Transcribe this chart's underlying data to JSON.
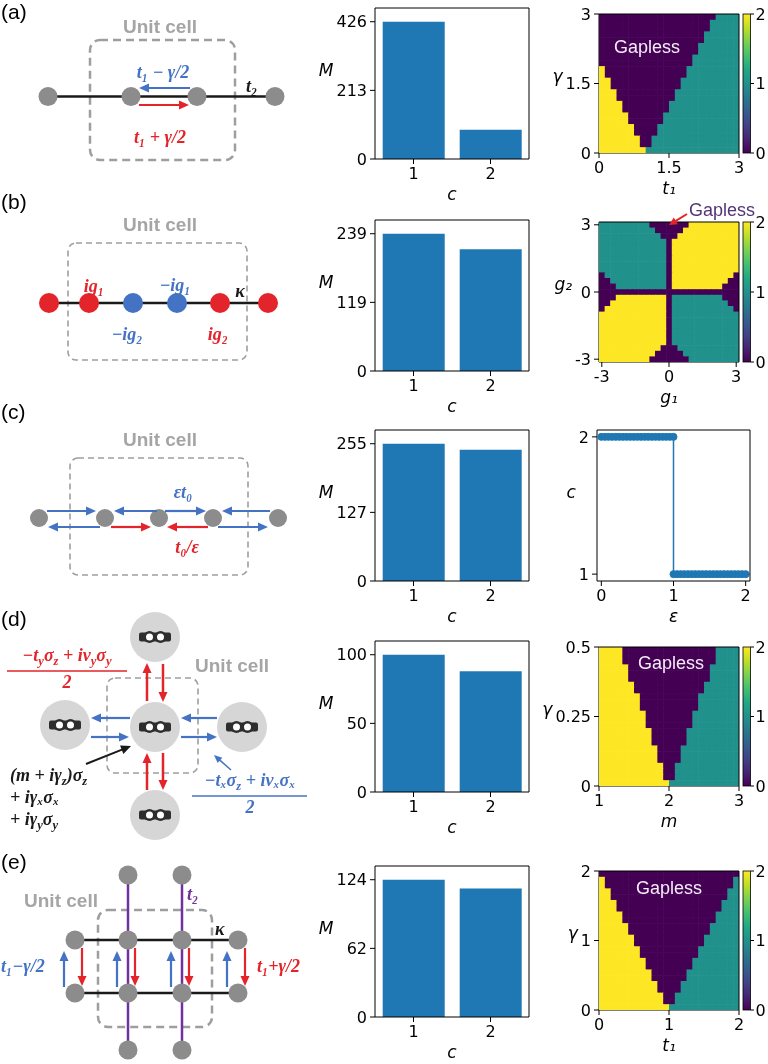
{
  "chart_data": [
    {
      "type": "other",
      "title": "(a)",
      "annotations": [
        "Unit cell",
        "t₁ − γ/2",
        "t₁ + γ/2",
        "t₂"
      ]
    },
    {
      "type": "bar",
      "categories": [
        "1",
        "2"
      ],
      "values": [
        426,
        91
      ],
      "color": "#1f77b4",
      "xlabel": "c",
      "ylabel": "M",
      "ylim": [
        0,
        468.6
      ],
      "yticks": [
        0,
        213,
        426
      ]
    },
    {
      "type": "heatmap",
      "xlabel": "t₁",
      "ylabel": "γ",
      "xlim": [
        0,
        3
      ],
      "ylim": [
        0,
        3
      ],
      "xticks": [
        0,
        1.5,
        3
      ],
      "yticks": [
        0,
        1.5,
        3
      ],
      "clim": [
        0,
        2
      ],
      "cticks": [
        0,
        1,
        2
      ],
      "annotations": [
        "Gapless"
      ],
      "cells": [
        [
          0,
          0,
          0,
          0,
          0,
          0,
          0,
          0,
          0,
          0,
          0,
          0,
          0,
          0,
          0,
          0,
          0,
          0,
          0,
          0,
          1,
          1,
          1,
          1
        ],
        [
          0,
          0,
          0,
          0,
          0,
          0,
          0,
          0,
          0,
          0,
          0,
          0,
          0,
          0,
          0,
          0,
          0,
          0,
          0,
          1,
          1,
          1,
          1,
          1
        ],
        [
          0,
          0,
          0,
          0,
          0,
          0,
          0,
          0,
          0,
          0,
          0,
          0,
          0,
          0,
          0,
          0,
          0,
          0,
          0,
          1,
          1,
          1,
          1,
          1
        ],
        [
          0,
          0,
          0,
          0,
          0,
          0,
          0,
          0,
          0,
          0,
          0,
          0,
          0,
          0,
          0,
          0,
          0,
          0,
          1,
          1,
          1,
          1,
          1,
          1
        ],
        [
          0,
          0,
          0,
          0,
          0,
          0,
          0,
          0,
          0,
          0,
          0,
          0,
          0,
          0,
          0,
          0,
          0,
          0,
          1,
          1,
          1,
          1,
          1,
          1
        ],
        [
          0,
          0,
          0,
          0,
          0,
          0,
          0,
          0,
          0,
          0,
          0,
          0,
          0,
          0,
          0,
          0,
          0,
          1,
          1,
          1,
          1,
          1,
          1,
          1
        ],
        [
          0,
          0,
          0,
          0,
          0,
          0,
          0,
          0,
          0,
          0,
          0,
          0,
          0,
          0,
          0,
          0,
          0,
          1,
          1,
          1,
          1,
          1,
          1,
          1
        ],
        [
          0,
          0,
          0,
          0,
          0,
          0,
          0,
          0,
          0,
          0,
          0,
          0,
          0,
          0,
          0,
          0,
          1,
          1,
          1,
          1,
          1,
          1,
          1,
          1
        ],
        [
          0,
          0,
          0,
          0,
          0,
          0,
          0,
          0,
          0,
          0,
          0,
          0,
          0,
          0,
          0,
          0,
          1,
          1,
          1,
          1,
          1,
          1,
          1,
          1
        ],
        [
          2,
          0,
          0,
          0,
          0,
          0,
          0,
          0,
          0,
          0,
          0,
          0,
          0,
          0,
          0,
          1,
          1,
          1,
          1,
          1,
          1,
          1,
          1,
          1
        ],
        [
          2,
          0,
          0,
          0,
          0,
          0,
          0,
          0,
          0,
          0,
          0,
          0,
          0,
          0,
          0,
          1,
          1,
          1,
          1,
          1,
          1,
          1,
          1,
          1
        ],
        [
          2,
          2,
          0,
          0,
          0,
          0,
          0,
          0,
          0,
          0,
          0,
          0,
          0,
          0,
          1,
          1,
          1,
          1,
          1,
          1,
          1,
          1,
          1,
          1
        ],
        [
          2,
          2,
          0,
          0,
          0,
          0,
          0,
          0,
          0,
          0,
          0,
          0,
          0,
          0,
          1,
          1,
          1,
          1,
          1,
          1,
          1,
          1,
          1,
          1
        ],
        [
          2,
          2,
          2,
          0,
          0,
          0,
          0,
          0,
          0,
          0,
          0,
          0,
          0,
          1,
          1,
          1,
          1,
          1,
          1,
          1,
          1,
          1,
          1,
          1
        ],
        [
          2,
          2,
          2,
          0,
          0,
          0,
          0,
          0,
          0,
          0,
          0,
          0,
          0,
          1,
          1,
          1,
          1,
          1,
          1,
          1,
          1,
          1,
          1,
          1
        ],
        [
          2,
          2,
          2,
          2,
          0,
          0,
          0,
          0,
          0,
          0,
          0,
          0,
          1,
          1,
          1,
          1,
          1,
          1,
          1,
          1,
          1,
          1,
          1,
          1
        ],
        [
          2,
          2,
          2,
          2,
          0,
          0,
          0,
          0,
          0,
          0,
          0,
          0,
          1,
          1,
          1,
          1,
          1,
          1,
          1,
          1,
          1,
          1,
          1,
          1
        ],
        [
          2,
          2,
          2,
          2,
          2,
          0,
          0,
          0,
          0,
          0,
          0,
          1,
          1,
          1,
          1,
          1,
          1,
          1,
          1,
          1,
          1,
          1,
          1,
          1
        ],
        [
          2,
          2,
          2,
          2,
          2,
          0,
          0,
          0,
          0,
          0,
          0,
          1,
          1,
          1,
          1,
          1,
          1,
          1,
          1,
          1,
          1,
          1,
          1,
          1
        ],
        [
          2,
          2,
          2,
          2,
          2,
          2,
          0,
          0,
          0,
          0,
          1,
          1,
          1,
          1,
          1,
          1,
          1,
          1,
          1,
          1,
          1,
          1,
          1,
          1
        ],
        [
          2,
          2,
          2,
          2,
          2,
          2,
          0,
          0,
          0,
          0,
          1,
          1,
          1,
          1,
          1,
          1,
          1,
          1,
          1,
          1,
          1,
          1,
          1,
          1
        ],
        [
          2,
          2,
          2,
          2,
          2,
          2,
          2,
          0,
          0,
          1,
          1,
          1,
          1,
          1,
          1,
          1,
          1,
          1,
          1,
          1,
          1,
          1,
          1,
          1
        ],
        [
          2,
          2,
          2,
          2,
          2,
          2,
          2,
          0,
          0,
          1,
          1,
          1,
          1,
          1,
          1,
          1,
          1,
          1,
          1,
          1,
          1,
          1,
          1,
          1
        ],
        [
          2,
          2,
          2,
          2,
          2,
          2,
          2,
          2,
          1,
          1,
          1,
          1,
          1,
          1,
          1,
          1,
          1,
          1,
          1,
          1,
          1,
          1,
          1,
          1
        ]
      ]
    },
    {
      "type": "other",
      "title": "(b)",
      "annotations": [
        "Unit cell",
        "ig₁",
        "−ig₁",
        "κ",
        "−ig₂",
        "ig₂"
      ]
    },
    {
      "type": "bar",
      "categories": [
        "1",
        "2"
      ],
      "values": [
        239,
        212
      ],
      "color": "#1f77b4",
      "xlabel": "c",
      "ylabel": "M",
      "ylim": [
        0,
        262.9
      ],
      "yticks": [
        0,
        {
          "value": 119.5,
          "label": "119"
        },
        239
      ]
    },
    {
      "type": "heatmap",
      "xlabel": "g₁",
      "ylabel": "g₂",
      "xlim": [
        -3.125,
        3.125
      ],
      "ylim": [
        -3.125,
        3.125
      ],
      "xticks": [
        -3,
        0,
        3
      ],
      "yticks": [
        -3,
        0,
        3
      ],
      "clim": [
        0,
        2
      ],
      "cticks": [
        0,
        1,
        2
      ],
      "annotations": [
        "Gapless"
      ],
      "cells": [
        [
          1,
          1,
          1,
          1,
          1,
          1,
          1,
          1,
          1,
          0,
          0,
          0,
          0,
          0,
          0,
          0,
          2,
          2,
          2,
          2,
          2,
          2,
          2,
          2,
          2
        ],
        [
          1,
          1,
          1,
          1,
          1,
          1,
          1,
          1,
          1,
          1,
          0,
          0,
          0,
          0,
          0,
          2,
          2,
          2,
          2,
          2,
          2,
          2,
          2,
          2,
          2
        ],
        [
          1,
          1,
          1,
          1,
          1,
          1,
          1,
          1,
          1,
          1,
          1,
          0,
          0,
          0,
          2,
          2,
          2,
          2,
          2,
          2,
          2,
          2,
          2,
          2,
          2
        ],
        [
          1,
          1,
          1,
          1,
          1,
          1,
          1,
          1,
          1,
          1,
          1,
          1,
          0,
          2,
          2,
          2,
          2,
          2,
          2,
          2,
          2,
          2,
          2,
          2,
          2
        ],
        [
          1,
          1,
          1,
          1,
          1,
          1,
          1,
          1,
          1,
          1,
          1,
          1,
          0,
          2,
          2,
          2,
          2,
          2,
          2,
          2,
          2,
          2,
          2,
          2,
          2
        ],
        [
          1,
          1,
          1,
          1,
          1,
          1,
          1,
          1,
          1,
          1,
          1,
          1,
          0,
          2,
          2,
          2,
          2,
          2,
          2,
          2,
          2,
          2,
          2,
          2,
          2
        ],
        [
          1,
          1,
          1,
          1,
          1,
          1,
          1,
          1,
          1,
          1,
          1,
          1,
          0,
          2,
          2,
          2,
          2,
          2,
          2,
          2,
          2,
          2,
          2,
          2,
          2
        ],
        [
          1,
          1,
          1,
          1,
          1,
          1,
          1,
          1,
          1,
          1,
          1,
          1,
          0,
          2,
          2,
          2,
          2,
          2,
          2,
          2,
          2,
          2,
          2,
          2,
          2
        ],
        [
          1,
          1,
          1,
          1,
          1,
          1,
          1,
          1,
          1,
          1,
          1,
          1,
          0,
          2,
          2,
          2,
          2,
          2,
          2,
          2,
          2,
          2,
          2,
          2,
          2
        ],
        [
          0,
          1,
          1,
          1,
          1,
          1,
          1,
          1,
          1,
          1,
          1,
          1,
          0,
          2,
          2,
          2,
          2,
          2,
          2,
          2,
          2,
          2,
          2,
          2,
          0
        ],
        [
          0,
          0,
          1,
          1,
          1,
          1,
          1,
          1,
          1,
          1,
          1,
          1,
          0,
          2,
          2,
          2,
          2,
          2,
          2,
          2,
          2,
          2,
          2,
          0,
          0
        ],
        [
          0,
          0,
          0,
          1,
          1,
          1,
          1,
          1,
          1,
          1,
          1,
          1,
          0,
          2,
          2,
          2,
          2,
          2,
          2,
          2,
          2,
          2,
          0,
          0,
          0
        ],
        [
          0,
          0,
          0,
          0,
          0,
          0,
          0,
          0,
          0,
          0,
          0,
          0,
          0,
          0,
          0,
          0,
          0,
          0,
          0,
          0,
          0,
          0,
          0,
          0,
          0
        ],
        [
          0,
          0,
          0,
          2,
          2,
          2,
          2,
          2,
          2,
          2,
          2,
          2,
          0,
          1,
          1,
          1,
          1,
          1,
          1,
          1,
          1,
          1,
          0,
          0,
          0
        ],
        [
          0,
          0,
          2,
          2,
          2,
          2,
          2,
          2,
          2,
          2,
          2,
          2,
          0,
          1,
          1,
          1,
          1,
          1,
          1,
          1,
          1,
          1,
          1,
          0,
          0
        ],
        [
          0,
          2,
          2,
          2,
          2,
          2,
          2,
          2,
          2,
          2,
          2,
          2,
          0,
          1,
          1,
          1,
          1,
          1,
          1,
          1,
          1,
          1,
          1,
          1,
          0
        ],
        [
          2,
          2,
          2,
          2,
          2,
          2,
          2,
          2,
          2,
          2,
          2,
          2,
          0,
          1,
          1,
          1,
          1,
          1,
          1,
          1,
          1,
          1,
          1,
          1,
          1
        ],
        [
          2,
          2,
          2,
          2,
          2,
          2,
          2,
          2,
          2,
          2,
          2,
          2,
          0,
          1,
          1,
          1,
          1,
          1,
          1,
          1,
          1,
          1,
          1,
          1,
          1
        ],
        [
          2,
          2,
          2,
          2,
          2,
          2,
          2,
          2,
          2,
          2,
          2,
          2,
          0,
          1,
          1,
          1,
          1,
          1,
          1,
          1,
          1,
          1,
          1,
          1,
          1
        ],
        [
          2,
          2,
          2,
          2,
          2,
          2,
          2,
          2,
          2,
          2,
          2,
          2,
          0,
          1,
          1,
          1,
          1,
          1,
          1,
          1,
          1,
          1,
          1,
          1,
          1
        ],
        [
          2,
          2,
          2,
          2,
          2,
          2,
          2,
          2,
          2,
          2,
          2,
          2,
          0,
          1,
          1,
          1,
          1,
          1,
          1,
          1,
          1,
          1,
          1,
          1,
          1
        ],
        [
          2,
          2,
          2,
          2,
          2,
          2,
          2,
          2,
          2,
          2,
          2,
          2,
          0,
          1,
          1,
          1,
          1,
          1,
          1,
          1,
          1,
          1,
          1,
          1,
          1
        ],
        [
          2,
          2,
          2,
          2,
          2,
          2,
          2,
          2,
          2,
          2,
          2,
          0,
          0,
          0,
          1,
          1,
          1,
          1,
          1,
          1,
          1,
          1,
          1,
          1,
          1
        ],
        [
          2,
          2,
          2,
          2,
          2,
          2,
          2,
          2,
          2,
          2,
          0,
          0,
          0,
          0,
          0,
          1,
          1,
          1,
          1,
          1,
          1,
          1,
          1,
          1,
          1
        ],
        [
          2,
          2,
          2,
          2,
          2,
          2,
          2,
          2,
          2,
          0,
          0,
          0,
          0,
          0,
          0,
          0,
          1,
          1,
          1,
          1,
          1,
          1,
          1,
          1,
          1
        ]
      ]
    },
    {
      "type": "other",
      "title": "(c)",
      "annotations": [
        "Unit cell",
        "εt₀",
        "t₀/ε"
      ]
    },
    {
      "type": "bar",
      "categories": [
        "1",
        "2"
      ],
      "values": [
        255,
        244
      ],
      "color": "#1f77b4",
      "xlabel": "c",
      "ylabel": "M",
      "ylim": [
        0,
        280.5
      ],
      "yticks": [
        0,
        {
          "value": 127.5,
          "label": "127"
        },
        255
      ]
    },
    {
      "type": "line",
      "xlabel": "ε",
      "ylabel": "c",
      "color": "#1f77b4",
      "marker": "circle",
      "xlim": [
        -0.06,
        2.06
      ],
      "ylim": [
        0.95,
        2.05
      ],
      "xticks": [
        0,
        1,
        2
      ],
      "yticks": [
        1,
        2
      ],
      "x": [
        0,
        0.05,
        0.1,
        0.15,
        0.2,
        0.25,
        0.3,
        0.35,
        0.4,
        0.45,
        0.5,
        0.55,
        0.6,
        0.65,
        0.7,
        0.75,
        0.8,
        0.85,
        0.9,
        0.95,
        1,
        1,
        1.05,
        1.1,
        1.15,
        1.2,
        1.25,
        1.3,
        1.35,
        1.4,
        1.45,
        1.5,
        1.55,
        1.6,
        1.65,
        1.7,
        1.75,
        1.8,
        1.85,
        1.9,
        1.95,
        2
      ],
      "values": [
        2,
        2,
        2,
        2,
        2,
        2,
        2,
        2,
        2,
        2,
        2,
        2,
        2,
        2,
        2,
        2,
        2,
        2,
        2,
        2,
        2,
        1,
        1,
        1,
        1,
        1,
        1,
        1,
        1,
        1,
        1,
        1,
        1,
        1,
        1,
        1,
        1,
        1,
        1,
        1,
        1,
        1
      ]
    },
    {
      "type": "other",
      "title": "(d)",
      "annotations": [
        "−t$_{y}$σ$_{z}$ + iv$_{y}$σ$_{y}$",
        "2",
        "Unit cell",
        "(m + iγ$_{z}$)σ$_{z}$",
        "+ iγₓσₓ",
        "+ iγ$_{y}$σ$_{y}$",
        "−tₓσ$_{z}$ + ivₓσₓ",
        "2"
      ]
    },
    {
      "type": "bar",
      "categories": [
        "1",
        "2"
      ],
      "values": [
        100,
        88
      ],
      "color": "#1f77b4",
      "xlabel": "c",
      "ylabel": "M",
      "ylim": [
        0,
        110
      ],
      "yticks": [
        0,
        50,
        100
      ]
    },
    {
      "type": "heatmap",
      "xlabel": "m",
      "ylabel": "γ",
      "xlim": [
        1,
        3
      ],
      "ylim": [
        0,
        0.5
      ],
      "xticks": [
        1,
        2,
        3
      ],
      "yticks": [
        0,
        0.25,
        0.5
      ],
      "clim": [
        0,
        2
      ],
      "cticks": [
        0,
        1,
        2
      ],
      "annotations": [
        "Gapless"
      ],
      "cells": [
        [
          2,
          2,
          2,
          2,
          0,
          0,
          0,
          0,
          0,
          0,
          0,
          0,
          0,
          0,
          0,
          0,
          0,
          0,
          0,
          0,
          1,
          1,
          1,
          1
        ],
        [
          2,
          2,
          2,
          2,
          0,
          0,
          0,
          0,
          0,
          0,
          0,
          0,
          0,
          0,
          0,
          0,
          0,
          0,
          0,
          0,
          1,
          1,
          1,
          1
        ],
        [
          2,
          2,
          2,
          2,
          0,
          0,
          0,
          0,
          0,
          0,
          0,
          0,
          0,
          0,
          0,
          0,
          0,
          0,
          0,
          0,
          1,
          1,
          1,
          1
        ],
        [
          2,
          2,
          2,
          2,
          2,
          0,
          0,
          0,
          0,
          0,
          0,
          0,
          0,
          0,
          0,
          0,
          0,
          0,
          0,
          1,
          1,
          1,
          1,
          1
        ],
        [
          2,
          2,
          2,
          2,
          2,
          0,
          0,
          0,
          0,
          0,
          0,
          0,
          0,
          0,
          0,
          0,
          0,
          0,
          0,
          1,
          1,
          1,
          1,
          1
        ],
        [
          2,
          2,
          2,
          2,
          2,
          0,
          0,
          0,
          0,
          0,
          0,
          0,
          0,
          0,
          0,
          0,
          0,
          0,
          0,
          1,
          1,
          1,
          1,
          1
        ],
        [
          2,
          2,
          2,
          2,
          2,
          2,
          0,
          0,
          0,
          0,
          0,
          0,
          0,
          0,
          0,
          0,
          0,
          0,
          1,
          1,
          1,
          1,
          1,
          1
        ],
        [
          2,
          2,
          2,
          2,
          2,
          2,
          0,
          0,
          0,
          0,
          0,
          0,
          0,
          0,
          0,
          0,
          0,
          0,
          1,
          1,
          1,
          1,
          1,
          1
        ],
        [
          2,
          2,
          2,
          2,
          2,
          2,
          2,
          0,
          0,
          0,
          0,
          0,
          0,
          0,
          0,
          0,
          0,
          1,
          1,
          1,
          1,
          1,
          1,
          1
        ],
        [
          2,
          2,
          2,
          2,
          2,
          2,
          2,
          0,
          0,
          0,
          0,
          0,
          0,
          0,
          0,
          0,
          0,
          1,
          1,
          1,
          1,
          1,
          1,
          1
        ],
        [
          2,
          2,
          2,
          2,
          2,
          2,
          2,
          0,
          0,
          0,
          0,
          0,
          0,
          0,
          0,
          0,
          0,
          1,
          1,
          1,
          1,
          1,
          1,
          1
        ],
        [
          2,
          2,
          2,
          2,
          2,
          2,
          2,
          2,
          0,
          0,
          0,
          0,
          0,
          0,
          0,
          0,
          1,
          1,
          1,
          1,
          1,
          1,
          1,
          1
        ],
        [
          2,
          2,
          2,
          2,
          2,
          2,
          2,
          2,
          0,
          0,
          0,
          0,
          0,
          0,
          0,
          0,
          1,
          1,
          1,
          1,
          1,
          1,
          1,
          1
        ],
        [
          2,
          2,
          2,
          2,
          2,
          2,
          2,
          2,
          0,
          0,
          0,
          0,
          0,
          0,
          0,
          0,
          1,
          1,
          1,
          1,
          1,
          1,
          1,
          1
        ],
        [
          2,
          2,
          2,
          2,
          2,
          2,
          2,
          2,
          2,
          0,
          0,
          0,
          0,
          0,
          0,
          1,
          1,
          1,
          1,
          1,
          1,
          1,
          1,
          1
        ],
        [
          2,
          2,
          2,
          2,
          2,
          2,
          2,
          2,
          2,
          0,
          0,
          0,
          0,
          0,
          0,
          1,
          1,
          1,
          1,
          1,
          1,
          1,
          1,
          1
        ],
        [
          2,
          2,
          2,
          2,
          2,
          2,
          2,
          2,
          2,
          0,
          0,
          0,
          0,
          0,
          0,
          1,
          1,
          1,
          1,
          1,
          1,
          1,
          1,
          1
        ],
        [
          2,
          2,
          2,
          2,
          2,
          2,
          2,
          2,
          2,
          2,
          0,
          0,
          0,
          0,
          1,
          1,
          1,
          1,
          1,
          1,
          1,
          1,
          1,
          1
        ],
        [
          2,
          2,
          2,
          2,
          2,
          2,
          2,
          2,
          2,
          2,
          0,
          0,
          0,
          0,
          1,
          1,
          1,
          1,
          1,
          1,
          1,
          1,
          1,
          1
        ],
        [
          2,
          2,
          2,
          2,
          2,
          2,
          2,
          2,
          2,
          2,
          0,
          0,
          0,
          0,
          1,
          1,
          1,
          1,
          1,
          1,
          1,
          1,
          1,
          1
        ],
        [
          2,
          2,
          2,
          2,
          2,
          2,
          2,
          2,
          2,
          2,
          2,
          0,
          0,
          1,
          1,
          1,
          1,
          1,
          1,
          1,
          1,
          1,
          1,
          1
        ],
        [
          2,
          2,
          2,
          2,
          2,
          2,
          2,
          2,
          2,
          2,
          2,
          0,
          0,
          1,
          1,
          1,
          1,
          1,
          1,
          1,
          1,
          1,
          1,
          1
        ],
        [
          2,
          2,
          2,
          2,
          2,
          2,
          2,
          2,
          2,
          2,
          2,
          0,
          0,
          1,
          1,
          1,
          1,
          1,
          1,
          1,
          1,
          1,
          1,
          1
        ],
        [
          2,
          2,
          2,
          2,
          2,
          2,
          2,
          2,
          2,
          2,
          2,
          2,
          1,
          1,
          1,
          1,
          1,
          1,
          1,
          1,
          1,
          1,
          1,
          1
        ]
      ]
    },
    {
      "type": "other",
      "title": "(e)",
      "annotations": [
        "Unit cell",
        "t₂",
        "κ",
        "t₁−γ/2",
        "t₁+γ/2"
      ]
    },
    {
      "type": "bar",
      "categories": [
        "1",
        "2"
      ],
      "values": [
        124,
        116
      ],
      "color": "#1f77b4",
      "xlabel": "c",
      "ylabel": "M",
      "ylim": [
        0,
        136.4
      ],
      "yticks": [
        0,
        62,
        124
      ]
    },
    {
      "type": "heatmap",
      "xlabel": "t₁",
      "ylabel": "γ",
      "xlim": [
        0,
        2
      ],
      "ylim": [
        0,
        2
      ],
      "xticks": [
        0,
        1,
        2
      ],
      "yticks": [
        0,
        1,
        2
      ],
      "clim": [
        0,
        2
      ],
      "cticks": [
        0,
        1,
        2
      ],
      "annotations": [
        "Gapless"
      ],
      "cells": [
        [
          0,
          0,
          0,
          0,
          0,
          0,
          0,
          0,
          0,
          0,
          0,
          0,
          0,
          0,
          0,
          0,
          0,
          0,
          0,
          0,
          0,
          0,
          0,
          0
        ],
        [
          2,
          0,
          0,
          0,
          0,
          0,
          0,
          0,
          0,
          0,
          0,
          0,
          0,
          0,
          0,
          0,
          0,
          0,
          0,
          0,
          0,
          0,
          0,
          1
        ],
        [
          2,
          0,
          0,
          0,
          0,
          0,
          0,
          0,
          0,
          0,
          0,
          0,
          0,
          0,
          0,
          0,
          0,
          0,
          0,
          0,
          0,
          0,
          0,
          1
        ],
        [
          2,
          2,
          0,
          0,
          0,
          0,
          0,
          0,
          0,
          0,
          0,
          0,
          0,
          0,
          0,
          0,
          0,
          0,
          0,
          0,
          0,
          0,
          1,
          1
        ],
        [
          2,
          2,
          0,
          0,
          0,
          0,
          0,
          0,
          0,
          0,
          0,
          0,
          0,
          0,
          0,
          0,
          0,
          0,
          0,
          0,
          0,
          0,
          1,
          1
        ],
        [
          2,
          2,
          2,
          0,
          0,
          0,
          0,
          0,
          0,
          0,
          0,
          0,
          0,
          0,
          0,
          0,
          0,
          0,
          0,
          0,
          0,
          1,
          1,
          1
        ],
        [
          2,
          2,
          2,
          0,
          0,
          0,
          0,
          0,
          0,
          0,
          0,
          0,
          0,
          0,
          0,
          0,
          0,
          0,
          0,
          0,
          0,
          1,
          1,
          1
        ],
        [
          2,
          2,
          2,
          2,
          0,
          0,
          0,
          0,
          0,
          0,
          0,
          0,
          0,
          0,
          0,
          0,
          0,
          0,
          0,
          0,
          1,
          1,
          1,
          1
        ],
        [
          2,
          2,
          2,
          2,
          0,
          0,
          0,
          0,
          0,
          0,
          0,
          0,
          0,
          0,
          0,
          0,
          0,
          0,
          0,
          0,
          1,
          1,
          1,
          1
        ],
        [
          2,
          2,
          2,
          2,
          2,
          0,
          0,
          0,
          0,
          0,
          0,
          0,
          0,
          0,
          0,
          0,
          0,
          0,
          0,
          1,
          1,
          1,
          1,
          1
        ],
        [
          2,
          2,
          2,
          2,
          2,
          0,
          0,
          0,
          0,
          0,
          0,
          0,
          0,
          0,
          0,
          0,
          0,
          0,
          0,
          1,
          1,
          1,
          1,
          1
        ],
        [
          2,
          2,
          2,
          2,
          2,
          2,
          0,
          0,
          0,
          0,
          0,
          0,
          0,
          0,
          0,
          0,
          0,
          0,
          1,
          1,
          1,
          1,
          1,
          1
        ],
        [
          2,
          2,
          2,
          2,
          2,
          2,
          0,
          0,
          0,
          0,
          0,
          0,
          0,
          0,
          0,
          0,
          0,
          0,
          1,
          1,
          1,
          1,
          1,
          1
        ],
        [
          2,
          2,
          2,
          2,
          2,
          2,
          2,
          0,
          0,
          0,
          0,
          0,
          0,
          0,
          0,
          0,
          0,
          1,
          1,
          1,
          1,
          1,
          1,
          1
        ],
        [
          2,
          2,
          2,
          2,
          2,
          2,
          2,
          0,
          0,
          0,
          0,
          0,
          0,
          0,
          0,
          0,
          0,
          1,
          1,
          1,
          1,
          1,
          1,
          1
        ],
        [
          2,
          2,
          2,
          2,
          2,
          2,
          2,
          2,
          0,
          0,
          0,
          0,
          0,
          0,
          0,
          0,
          1,
          1,
          1,
          1,
          1,
          1,
          1,
          1
        ],
        [
          2,
          2,
          2,
          2,
          2,
          2,
          2,
          2,
          0,
          0,
          0,
          0,
          0,
          0,
          0,
          0,
          1,
          1,
          1,
          1,
          1,
          1,
          1,
          1
        ],
        [
          2,
          2,
          2,
          2,
          2,
          2,
          2,
          2,
          2,
          0,
          0,
          0,
          0,
          0,
          0,
          1,
          1,
          1,
          1,
          1,
          1,
          1,
          1,
          1
        ],
        [
          2,
          2,
          2,
          2,
          2,
          2,
          2,
          2,
          2,
          0,
          0,
          0,
          0,
          0,
          0,
          1,
          1,
          1,
          1,
          1,
          1,
          1,
          1,
          1
        ],
        [
          2,
          2,
          2,
          2,
          2,
          2,
          2,
          2,
          2,
          2,
          0,
          0,
          0,
          0,
          1,
          1,
          1,
          1,
          1,
          1,
          1,
          1,
          1,
          1
        ],
        [
          2,
          2,
          2,
          2,
          2,
          2,
          2,
          2,
          2,
          2,
          0,
          0,
          0,
          0,
          1,
          1,
          1,
          1,
          1,
          1,
          1,
          1,
          1,
          1
        ],
        [
          2,
          2,
          2,
          2,
          2,
          2,
          2,
          2,
          2,
          2,
          2,
          0,
          0,
          1,
          1,
          1,
          1,
          1,
          1,
          1,
          1,
          1,
          1,
          1
        ],
        [
          2,
          2,
          2,
          2,
          2,
          2,
          2,
          2,
          2,
          2,
          2,
          0,
          0,
          1,
          1,
          1,
          1,
          1,
          1,
          1,
          1,
          1,
          1,
          1
        ],
        [
          2,
          2,
          2,
          2,
          2,
          2,
          2,
          2,
          2,
          2,
          2,
          2,
          1,
          1,
          1,
          1,
          1,
          1,
          1,
          1,
          1,
          1,
          1,
          1
        ]
      ]
    }
  ]
}
